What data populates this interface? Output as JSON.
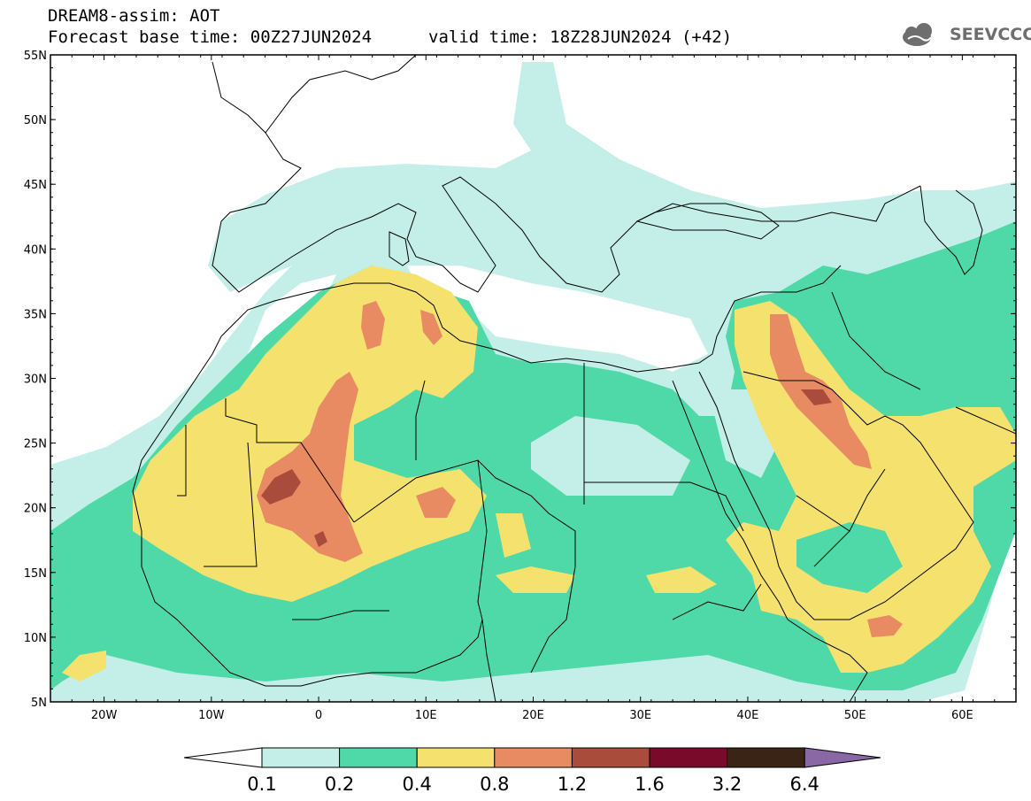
{
  "header": {
    "title_line1": "DREAM8-assim: AOT",
    "title_line2": "Forecast base time: 00Z27JUN2024",
    "valid_time": "valid time: 18Z28JUN2024 (+42)"
  },
  "logo": {
    "text": "SEEVCCC",
    "icon": "cloud-logo-icon"
  },
  "map": {
    "lat_labels": [
      "55N",
      "50N",
      "45N",
      "40N",
      "35N",
      "30N",
      "25N",
      "20N",
      "15N",
      "10N",
      "5N"
    ],
    "lon_labels": [
      "20W",
      "10W",
      "0",
      "10E",
      "20E",
      "30E",
      "40E",
      "50E",
      "60E"
    ],
    "lat_range": [
      5,
      55
    ],
    "lon_range": [
      -25,
      65
    ]
  },
  "colorbar": {
    "labels": [
      "0.1",
      "0.2",
      "0.4",
      "0.8",
      "1.2",
      "1.6",
      "3.2",
      "6.4"
    ],
    "colors": [
      "#ffffff",
      "#c4efe8",
      "#4fd9a8",
      "#f5e26e",
      "#e88a62",
      "#a94c3c",
      "#7a0a2a",
      "#3a2416",
      "#8a68a6"
    ]
  },
  "colors": {
    "level1": "#c4efe8",
    "level2": "#4fd9a8",
    "level3": "#f5e26e",
    "level4": "#e88a62",
    "level5": "#a94c3c"
  }
}
